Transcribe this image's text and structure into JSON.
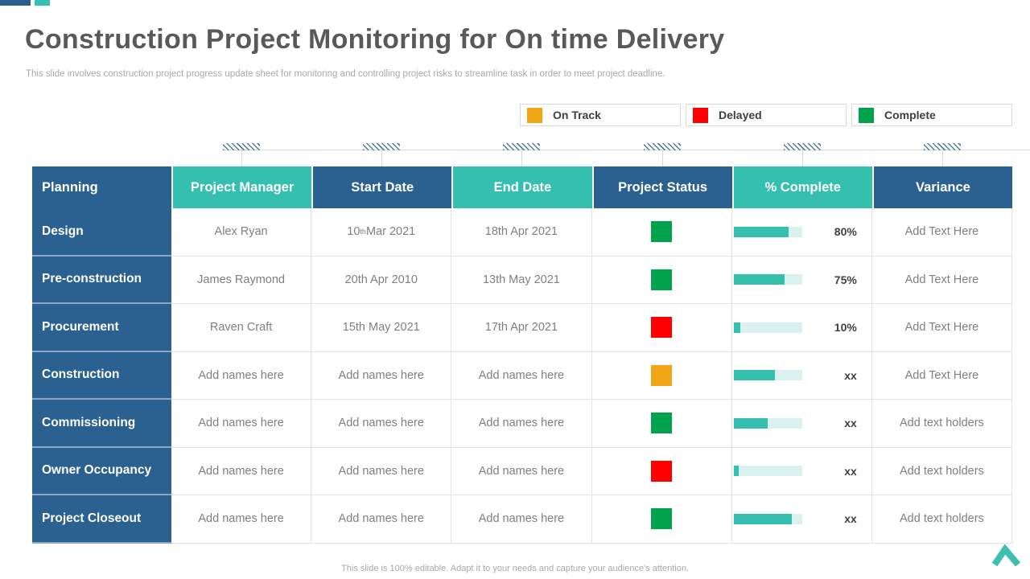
{
  "slide": {
    "title": "Construction Project Monitoring for On time Delivery",
    "subtitle": "This slide involves construction project progress update sheet for monitoring and controlling project risks to streamline task in order to meet project deadline.",
    "footer": "This slide is 100% editable.  Adapt it to your needs and capture your audience's attention."
  },
  "colors": {
    "header_blue": "#2A6191",
    "header_teal": "#35BFAF",
    "bar_fill": "#35BFAF",
    "bar_track": "#D9F2EF",
    "status_on_track": "#F2A516",
    "status_delayed": "#FE0000",
    "status_complete": "#00A24B"
  },
  "legend": [
    {
      "label": "On Track",
      "status": "on-track"
    },
    {
      "label": "Delayed",
      "status": "delayed"
    },
    {
      "label": "Complete",
      "status": "complete"
    }
  ],
  "table": {
    "headers": [
      "Planning",
      "Project Manager",
      "Start Date",
      "End Date",
      "Project Status",
      "% Complete",
      "Variance"
    ],
    "rows": [
      {
        "phase": "Design",
        "manager": "Alex Ryan",
        "start_day": "10",
        "start_ordinal": "th",
        "start_rest": " Mar 2021",
        "end": "18th Apr 2021",
        "status": "complete",
        "percent_fill": 80,
        "percent_label": "80%",
        "variance": "Add Text Here"
      },
      {
        "phase": "Pre-construction",
        "manager": "James Raymond",
        "start": "20th Apr 2010",
        "end": "13th May 2021",
        "status": "complete",
        "percent_fill": 75,
        "percent_label": "75%",
        "variance": "Add Text Here"
      },
      {
        "phase": "Procurement",
        "manager": "Raven Craft",
        "start": "15th May 2021",
        "end": "17th Apr 2021",
        "status": "delayed",
        "percent_fill": 10,
        "percent_label": "10%",
        "variance": "Add Text Here"
      },
      {
        "phase": "Construction",
        "manager": "Add names here",
        "start": "Add names here",
        "end": "Add names here",
        "status": "on-track",
        "percent_fill": 60,
        "percent_label": "xx",
        "variance": "Add Text Here"
      },
      {
        "phase": "Commissioning",
        "manager": "Add names here",
        "start": "Add names here",
        "end": "Add names here",
        "status": "complete",
        "percent_fill": 50,
        "percent_label": "xx",
        "variance": "Add text holders"
      },
      {
        "phase": "Owner Occupancy",
        "manager": "Add names here",
        "start": "Add names here",
        "end": "Add names here",
        "status": "delayed",
        "percent_fill": 8,
        "percent_label": "xx",
        "variance": "Add text holders"
      },
      {
        "phase": "Project Closeout",
        "manager": "Add names here",
        "start": "Add names here",
        "end": "Add names here",
        "status": "complete",
        "percent_fill": 85,
        "percent_label": "xx",
        "variance": "Add text holders"
      }
    ]
  }
}
